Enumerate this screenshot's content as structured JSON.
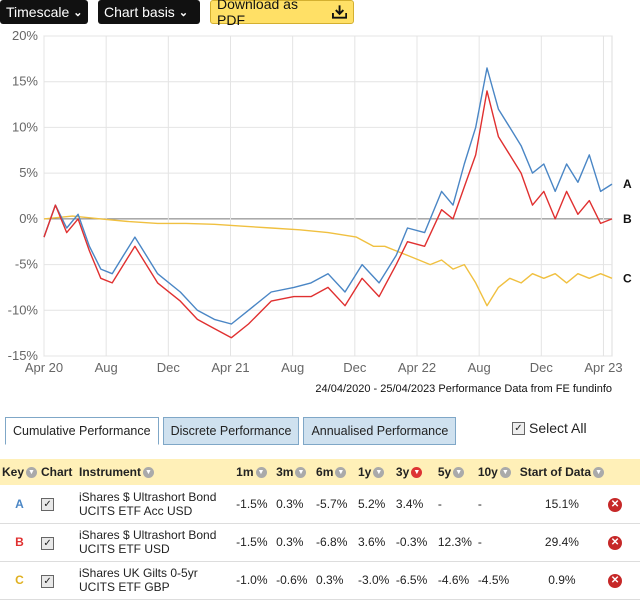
{
  "toolbar": {
    "timescale_label": "Timescale",
    "chart_basis_label": "Chart basis",
    "download_label": "Download as PDF"
  },
  "chart_data": {
    "type": "line",
    "x_tick_labels": [
      "Apr 20",
      "Aug",
      "Dec",
      "Apr 21",
      "Aug",
      "Dec",
      "Apr 22",
      "Aug",
      "Dec",
      "Apr 23"
    ],
    "y_tick_labels": [
      "20%",
      "15%",
      "10%",
      "5%",
      "0%",
      "-5%",
      "-10%",
      "-15%"
    ],
    "ylim": [
      -15,
      20
    ],
    "grid": true,
    "credit": "24/04/2020 - 25/04/2023 Performance Data from FE fundinfo",
    "series": [
      {
        "name": "A",
        "color": "#4a86c5",
        "x": [
          0,
          0.02,
          0.04,
          0.06,
          0.08,
          0.1,
          0.12,
          0.14,
          0.16,
          0.2,
          0.24,
          0.27,
          0.3,
          0.33,
          0.36,
          0.4,
          0.44,
          0.47,
          0.5,
          0.53,
          0.56,
          0.59,
          0.62,
          0.64,
          0.67,
          0.7,
          0.72,
          0.74,
          0.76,
          0.78,
          0.8,
          0.82,
          0.84,
          0.86,
          0.88,
          0.9,
          0.92,
          0.94,
          0.96,
          0.98,
          1.0
        ],
        "values": [
          -2,
          1.5,
          -1,
          0.5,
          -3,
          -5.5,
          -6,
          -4,
          -2,
          -6,
          -8,
          -10,
          -11,
          -11.5,
          -10,
          -8,
          -7.5,
          -7,
          -6,
          -8,
          -5,
          -7,
          -4,
          -1,
          -1.5,
          3,
          1.5,
          6,
          10,
          16.5,
          12,
          10,
          8,
          5,
          6,
          3,
          6,
          4,
          7,
          3,
          3.8
        ]
      },
      {
        "name": "B",
        "color": "#e03030",
        "x": [
          0,
          0.02,
          0.04,
          0.06,
          0.08,
          0.1,
          0.12,
          0.14,
          0.16,
          0.2,
          0.24,
          0.27,
          0.3,
          0.33,
          0.36,
          0.4,
          0.44,
          0.47,
          0.5,
          0.53,
          0.56,
          0.59,
          0.62,
          0.64,
          0.67,
          0.7,
          0.72,
          0.74,
          0.76,
          0.78,
          0.8,
          0.82,
          0.84,
          0.86,
          0.88,
          0.9,
          0.92,
          0.94,
          0.96,
          0.98,
          1.0
        ],
        "values": [
          -2,
          1.5,
          -1.5,
          0,
          -3.5,
          -6.5,
          -7,
          -5,
          -3,
          -7,
          -9,
          -11,
          -12,
          -13,
          -11.5,
          -9,
          -8.5,
          -8.5,
          -7.5,
          -9.5,
          -6.5,
          -8.5,
          -5,
          -2.5,
          -3,
          1,
          0,
          3.5,
          7,
          14,
          9,
          7,
          5,
          1.5,
          3,
          0,
          3,
          0.5,
          2,
          -0.5,
          0
        ]
      },
      {
        "name": "C",
        "color": "#f0c040",
        "x": [
          0,
          0.05,
          0.1,
          0.15,
          0.2,
          0.25,
          0.3,
          0.35,
          0.4,
          0.45,
          0.5,
          0.55,
          0.58,
          0.6,
          0.62,
          0.64,
          0.66,
          0.68,
          0.7,
          0.72,
          0.74,
          0.76,
          0.78,
          0.8,
          0.82,
          0.84,
          0.86,
          0.88,
          0.9,
          0.92,
          0.94,
          0.96,
          0.98,
          1.0
        ],
        "values": [
          0,
          0.3,
          0,
          -0.3,
          -0.5,
          -0.5,
          -0.6,
          -0.8,
          -1,
          -1.2,
          -1.5,
          -2,
          -3,
          -3,
          -3.5,
          -4,
          -4.5,
          -5,
          -4.5,
          -5.5,
          -5,
          -7,
          -9.5,
          -7.5,
          -6.5,
          -7,
          -6,
          -6.5,
          -6,
          -7,
          -6,
          -6.5,
          -6,
          -6.5
        ]
      }
    ]
  },
  "tabs": [
    {
      "label": "Cumulative Performance",
      "active": true
    },
    {
      "label": "Discrete Performance",
      "active": false
    },
    {
      "label": "Annualised Performance",
      "active": false
    }
  ],
  "select_all": {
    "label": "Select All",
    "checked": true
  },
  "table": {
    "headers": {
      "key": "Key",
      "chart": "Chart",
      "instrument": "Instrument",
      "m1": "1m",
      "m3": "3m",
      "m6": "6m",
      "y1": "1y",
      "y3": "3y",
      "y5": "5y",
      "y10": "10y",
      "start": "Start of Data"
    },
    "rows": [
      {
        "key": "A",
        "key_color": "#4a86c5",
        "instrument": "iShares $ Ultrashort Bond UCITS ETF Acc USD",
        "m1": "-1.5%",
        "m3": "0.3%",
        "m6": "-5.7%",
        "y1": "5.2%",
        "y3": "3.4%",
        "y5": "-",
        "y10": "-",
        "start": "15.1%"
      },
      {
        "key": "B",
        "key_color": "#e03030",
        "instrument": "iShares $ Ultrashort Bond UCITS ETF USD",
        "m1": "-1.5%",
        "m3": "0.3%",
        "m6": "-6.8%",
        "y1": "3.6%",
        "y3": "-0.3%",
        "y5": "12.3%",
        "y10": "-",
        "start": "29.4%"
      },
      {
        "key": "C",
        "key_color": "#f0c040",
        "instrument": "iShares UK Gilts 0-5yr UCITS ETF GBP",
        "m1": "-1.0%",
        "m3": "-0.6%",
        "m6": "0.3%",
        "y1": "-3.0%",
        "y3": "-6.5%",
        "y5": "-4.6%",
        "y10": "-4.5%",
        "start": "0.9%"
      }
    ]
  }
}
